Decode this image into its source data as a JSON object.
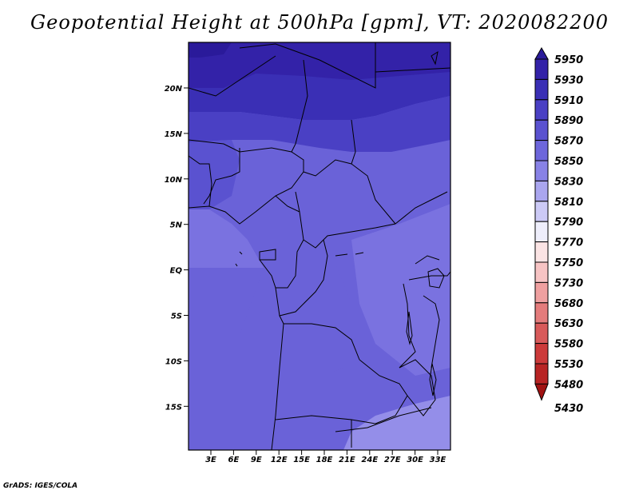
{
  "title": "Geopotential Height at 500hPa [gpm], VT: 2020082200",
  "credit": "GrADS: IGES/COLA",
  "map": {
    "lat_labels": [
      "20N",
      "15N",
      "10N",
      "5N",
      "EQ",
      "5S",
      "10S",
      "15S"
    ],
    "lon_labels": [
      "3E",
      "6E",
      "9E",
      "12E",
      "15E",
      "18E",
      "21E",
      "24E",
      "27E",
      "30E",
      "33E"
    ],
    "variable": "Geopotential Height at 500hPa",
    "units": "gpm",
    "valid_time": "2020082200"
  },
  "colorbar": {
    "levels": [
      "5950",
      "5930",
      "5910",
      "5890",
      "5870",
      "5850",
      "5830",
      "5810",
      "5790",
      "5770",
      "5750",
      "5730",
      "5680",
      "5630",
      "5580",
      "5530",
      "5480",
      "5430"
    ],
    "colors": [
      "#2a1a9a",
      "#3322a8",
      "#3a2fb5",
      "#4a40c4",
      "#5a52d0",
      "#6d66db",
      "#8882e6",
      "#aaa6ef",
      "#cccaf6",
      "#eeeefb",
      "#fbe4e4",
      "#f7c4c4",
      "#efa0a0",
      "#e47c7c",
      "#d85a5a",
      "#cc3a3a",
      "#b82424",
      "#a01212"
    ]
  }
}
